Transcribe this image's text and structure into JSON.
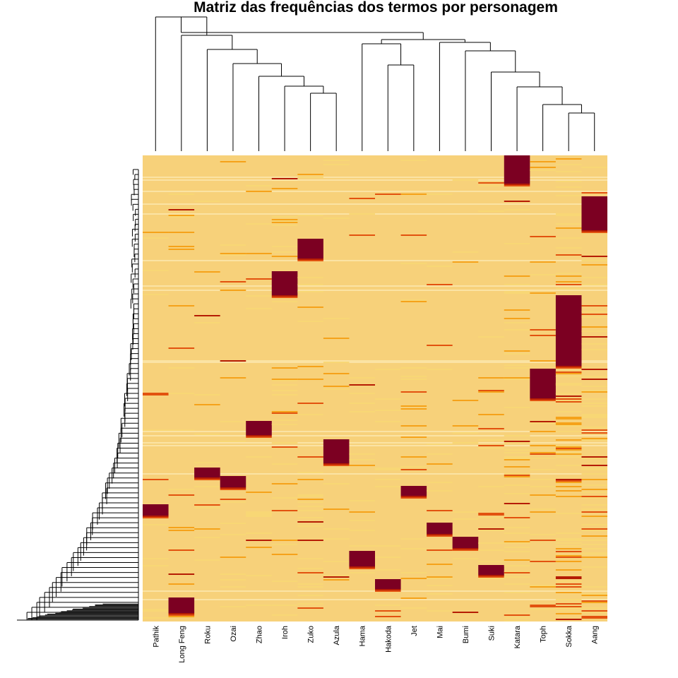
{
  "chart_data": {
    "type": "heatmap",
    "title": "Matriz das frequências dos termos por personagem",
    "columns": [
      "Pathik",
      "Long Feng",
      "Roku",
      "Ozai",
      "Zhao",
      "Iroh",
      "Zuko",
      "Azula",
      "Hama",
      "Hakoda",
      "Jet",
      "Mai",
      "Bumi",
      "Suki",
      "Katara",
      "Toph",
      "Sokka",
      "Aang"
    ],
    "color_scale": [
      "#f8d775",
      "#f5a21a",
      "#e2520f",
      "#b51c04",
      "#7c0022"
    ],
    "background_color": "#f7d17a",
    "column_dendrogram": true,
    "row_dendrogram": true,
    "dominant_blocks": [
      {
        "column": "Katara",
        "row_band": [
          0.0,
          0.06
        ],
        "level": 4
      },
      {
        "column": "Aang",
        "row_band": [
          0.09,
          0.16
        ],
        "level": 4
      },
      {
        "column": "Zuko",
        "row_band": [
          0.18,
          0.22
        ],
        "level": 4
      },
      {
        "column": "Iroh",
        "row_band": [
          0.25,
          0.3
        ],
        "level": 4
      },
      {
        "column": "Sokka",
        "row_band": [
          0.3,
          0.45
        ],
        "level": 4
      },
      {
        "column": "Toph",
        "row_band": [
          0.46,
          0.52
        ],
        "level": 4
      },
      {
        "column": "Zhao",
        "row_band": [
          0.57,
          0.6
        ],
        "level": 4
      },
      {
        "column": "Azula",
        "row_band": [
          0.61,
          0.66
        ],
        "level": 4
      },
      {
        "column": "Roku",
        "row_band": [
          0.67,
          0.69
        ],
        "level": 4
      },
      {
        "column": "Ozai",
        "row_band": [
          0.69,
          0.71
        ],
        "level": 4
      },
      {
        "column": "Jet",
        "row_band": [
          0.71,
          0.73
        ],
        "level": 4
      },
      {
        "column": "Pathik",
        "row_band": [
          0.75,
          0.77
        ],
        "level": 4
      },
      {
        "column": "Mai",
        "row_band": [
          0.79,
          0.81
        ],
        "level": 4
      },
      {
        "column": "Bumi",
        "row_band": [
          0.82,
          0.84
        ],
        "level": 4
      },
      {
        "column": "Hama",
        "row_band": [
          0.85,
          0.88
        ],
        "level": 4
      },
      {
        "column": "Suki",
        "row_band": [
          0.88,
          0.9
        ],
        "level": 4
      },
      {
        "column": "Hakoda",
        "row_band": [
          0.91,
          0.93
        ],
        "level": 4
      },
      {
        "column": "Long Feng",
        "row_band": [
          0.95,
          0.98
        ],
        "level": 4
      }
    ]
  }
}
